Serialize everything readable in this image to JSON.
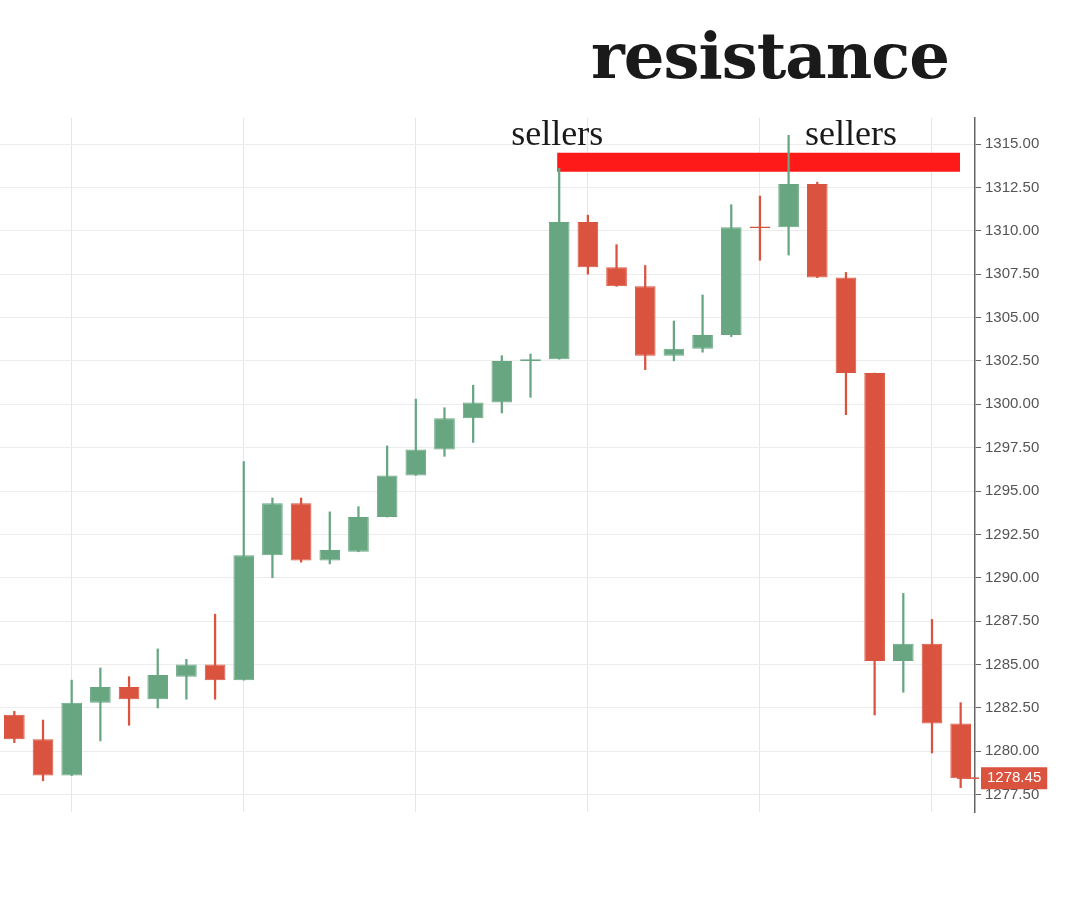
{
  "chart_data": {
    "type": "candlestick",
    "title": "resistance",
    "categories": [
      null,
      null,
      null,
      null,
      null,
      null,
      null,
      null,
      null,
      null,
      null,
      null,
      null,
      null,
      null,
      null,
      null,
      null,
      null,
      null,
      null,
      null,
      null,
      null,
      null,
      null,
      null,
      null,
      null,
      null,
      null,
      null,
      null,
      null
    ],
    "ohlc": [
      [
        1282.1,
        1282.3,
        1280.5,
        1280.7
      ],
      [
        1280.7,
        1281.8,
        1278.3,
        1278.6
      ],
      [
        1278.6,
        1284.1,
        1278.6,
        1282.8
      ],
      [
        1282.8,
        1284.8,
        1280.6,
        1283.7
      ],
      [
        1283.7,
        1284.3,
        1281.5,
        1283.0
      ],
      [
        1283.0,
        1285.9,
        1282.5,
        1284.4
      ],
      [
        1284.3,
        1285.3,
        1283.0,
        1285.0
      ],
      [
        1285.0,
        1287.9,
        1283.0,
        1284.1
      ],
      [
        1284.1,
        1296.7,
        1284.1,
        1291.3
      ],
      [
        1291.3,
        1294.6,
        1290.0,
        1294.3
      ],
      [
        1294.3,
        1294.6,
        1290.9,
        1291.0
      ],
      [
        1291.0,
        1293.8,
        1290.8,
        1291.6
      ],
      [
        1291.5,
        1294.1,
        1291.5,
        1293.5
      ],
      [
        1293.5,
        1297.6,
        1293.5,
        1295.9
      ],
      [
        1295.9,
        1300.3,
        1295.9,
        1297.4
      ],
      [
        1297.4,
        1299.8,
        1297.0,
        1299.2
      ],
      [
        1299.2,
        1301.1,
        1297.8,
        1300.1
      ],
      [
        1300.1,
        1302.8,
        1299.5,
        1302.5
      ],
      [
        1302.5,
        1302.9,
        1300.4,
        1302.6
      ],
      [
        1302.6,
        1313.6,
        1302.6,
        1310.5
      ],
      [
        1310.5,
        1310.9,
        1307.5,
        1307.9
      ],
      [
        1307.9,
        1309.2,
        1306.8,
        1306.8
      ],
      [
        1306.8,
        1308.0,
        1302.0,
        1302.8
      ],
      [
        1302.8,
        1304.8,
        1302.5,
        1303.2
      ],
      [
        1303.2,
        1306.3,
        1303.0,
        1304.0
      ],
      [
        1304.0,
        1311.5,
        1303.9,
        1310.2
      ],
      [
        1310.2,
        1312.0,
        1308.3,
        1310.2
      ],
      [
        1310.2,
        1315.5,
        1308.6,
        1312.7
      ],
      [
        1312.7,
        1312.8,
        1307.3,
        1307.3
      ],
      [
        1307.3,
        1307.6,
        1299.4,
        1301.8
      ],
      [
        1301.8,
        1301.8,
        1282.1,
        1285.2
      ],
      [
        1285.2,
        1289.1,
        1283.4,
        1286.2
      ],
      [
        1286.2,
        1287.6,
        1279.9,
        1281.6
      ],
      [
        1281.6,
        1282.8,
        1277.9,
        1278.45
      ]
    ],
    "colors": [
      "#d9533f",
      "#d9533f",
      "#68a682",
      "#68a682",
      "#d9533f",
      "#68a682",
      "#68a682",
      "#d9533f",
      "#68a682",
      "#68a682",
      "#d9533f",
      "#68a682",
      "#68a682",
      "#68a682",
      "#68a682",
      "#68a682",
      "#68a682",
      "#68a682",
      "#68a682",
      "#68a682",
      "#d9533f",
      "#d9533f",
      "#d9533f",
      "#68a682",
      "#68a682",
      "#68a682",
      "#d9533f",
      "#68a682",
      "#d9533f",
      "#d9533f",
      "#d9533f",
      "#68a682",
      "#d9533f",
      "#d9533f"
    ],
    "ylim": [
      1276.5,
      1316.5
    ],
    "yticks": [
      {
        "value": 1277.5,
        "label": "1277.50"
      },
      {
        "value": 1280,
        "label": "1280.00"
      },
      {
        "value": 1282.5,
        "label": "1282.50"
      },
      {
        "value": 1285,
        "label": "1285.00"
      },
      {
        "value": 1287.5,
        "label": "1287.50"
      },
      {
        "value": 1290,
        "label": "1290.00"
      },
      {
        "value": 1292.5,
        "label": "1292.50"
      },
      {
        "value": 1295,
        "label": "1295.00"
      },
      {
        "value": 1297.5,
        "label": "1297.50"
      },
      {
        "value": 1300,
        "label": "1300.00"
      },
      {
        "value": 1302.5,
        "label": "1302.50"
      },
      {
        "value": 1305,
        "label": "1305.00"
      },
      {
        "value": 1307.5,
        "label": "1307.50"
      },
      {
        "value": 1310,
        "label": "1310.00"
      },
      {
        "value": 1312.5,
        "label": "1312.50"
      },
      {
        "value": 1315,
        "label": "1315.00"
      }
    ],
    "grid": true,
    "tick_labels": "y",
    "bands": [
      {
        "axis": "y",
        "from": 1313.4,
        "to": 1314.5,
        "color": "#ff1a1a"
      }
    ],
    "ref_lines": [
      {
        "axis": "y",
        "value": 1278.45,
        "label": "1278.45",
        "color": "#d9533f"
      }
    ],
    "annotations": [
      "sellers",
      "sellers"
    ]
  }
}
